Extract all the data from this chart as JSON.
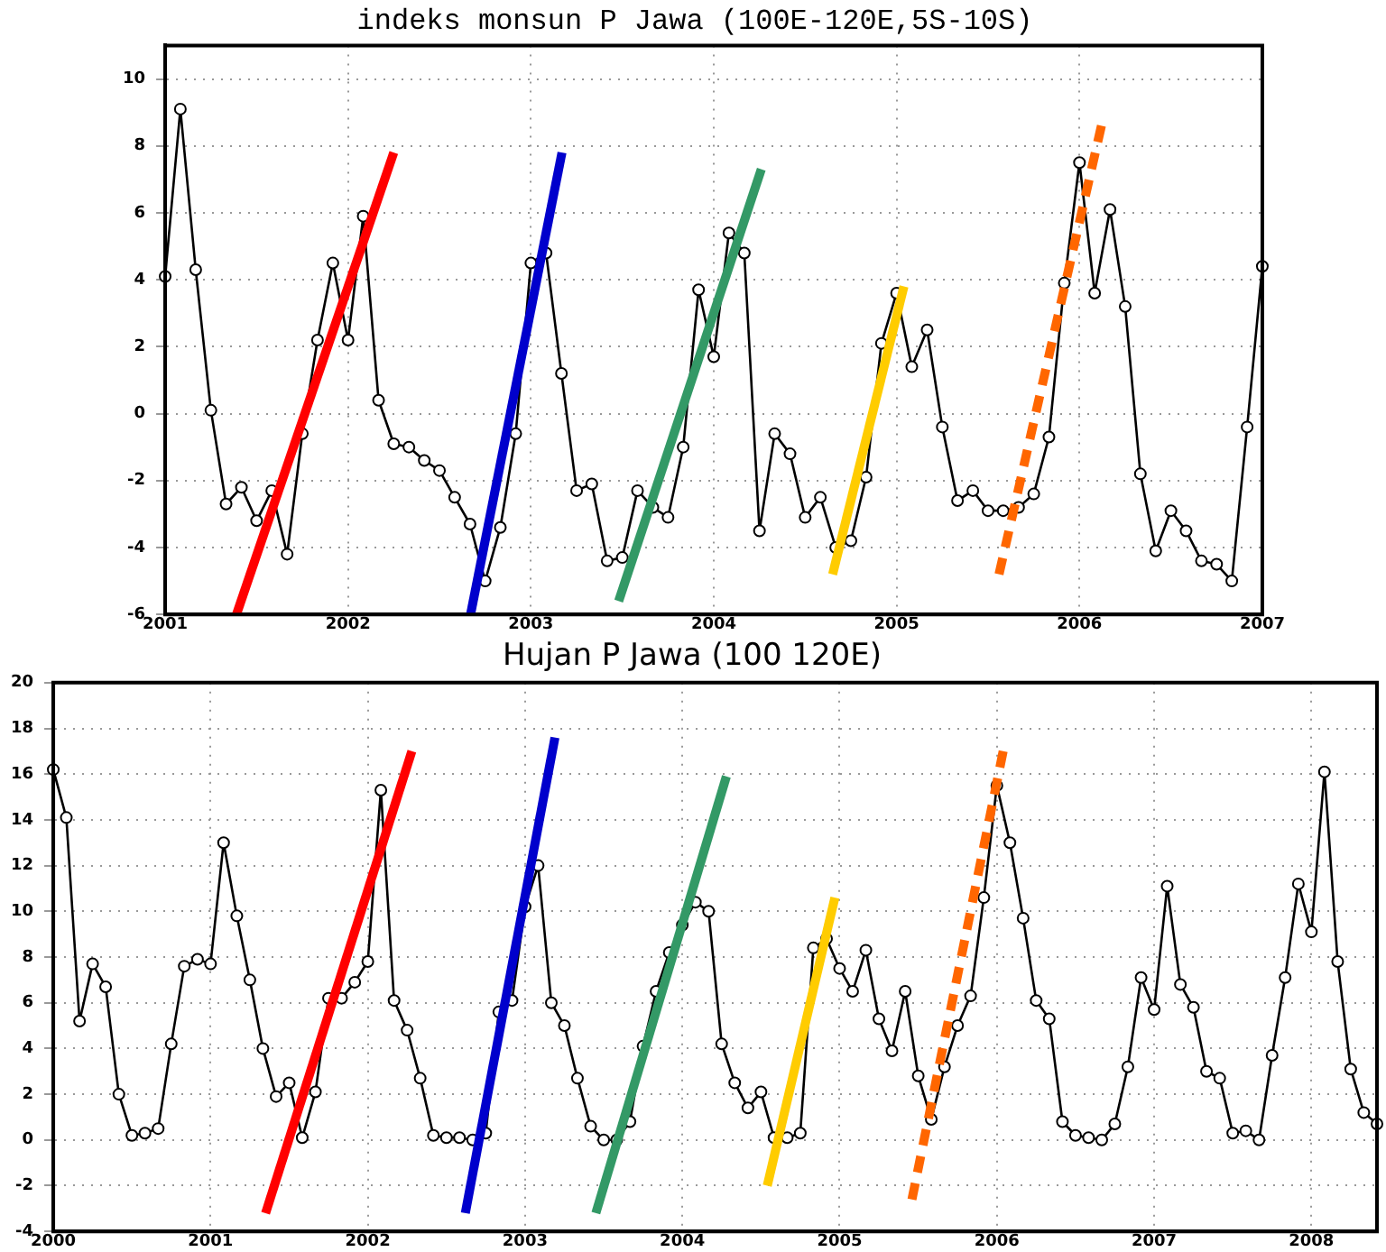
{
  "chart_data": [
    {
      "type": "line",
      "title": "indeks monsun P Jawa (100E-120E,5S-10S)",
      "xlim": [
        2001,
        2007
      ],
      "xticks": [
        2001,
        2002,
        2003,
        2004,
        2005,
        2006,
        2007
      ],
      "ylim": [
        -6,
        11
      ],
      "yticks": [
        -6,
        -4,
        -2,
        0,
        2,
        4,
        6,
        8,
        10
      ],
      "grid": true,
      "marker": "circle",
      "line_style": "solid",
      "series": [
        {
          "color": "#000000",
          "x": [
            2001,
            2001.083,
            2001.167,
            2001.25,
            2001.333,
            2001.417,
            2001.5,
            2001.583,
            2001.667,
            2001.75,
            2001.833,
            2001.917,
            2002,
            2002.083,
            2002.167,
            2002.25,
            2002.333,
            2002.417,
            2002.5,
            2002.583,
            2002.667,
            2002.75,
            2002.833,
            2002.917,
            2003,
            2003.083,
            2003.167,
            2003.25,
            2003.333,
            2003.417,
            2003.5,
            2003.583,
            2003.667,
            2003.75,
            2003.833,
            2003.917,
            2004,
            2004.083,
            2004.167,
            2004.25,
            2004.333,
            2004.417,
            2004.5,
            2004.583,
            2004.667,
            2004.75,
            2004.833,
            2004.917,
            2005,
            2005.083,
            2005.167,
            2005.25,
            2005.333,
            2005.417,
            2005.5,
            2005.583,
            2005.667,
            2005.75,
            2005.833,
            2005.917,
            2006,
            2006.083,
            2006.167,
            2006.25,
            2006.333,
            2006.417,
            2006.5,
            2006.583,
            2006.667,
            2006.75,
            2006.833,
            2006.917,
            2007
          ],
          "values": [
            4.1,
            9.1,
            4.3,
            0.1,
            -2.7,
            -2.2,
            -3.2,
            -2.3,
            -4.2,
            -0.6,
            2.2,
            4.5,
            2.2,
            5.9,
            0.4,
            -0.9,
            -1.0,
            -1.4,
            -1.7,
            -2.5,
            -3.3,
            -5.0,
            -3.4,
            -0.6,
            4.5,
            4.8,
            1.2,
            -2.3,
            -2.1,
            -4.4,
            -4.3,
            -2.3,
            -2.8,
            -3.1,
            -1.0,
            3.7,
            1.7,
            5.4,
            4.8,
            -3.5,
            -0.6,
            -1.2,
            -3.1,
            -2.5,
            -4.0,
            -3.8,
            -1.9,
            2.1,
            3.6,
            1.4,
            2.5,
            -0.4,
            -2.6,
            -2.3,
            -2.9,
            -2.9,
            -2.8,
            -2.4,
            -0.7,
            3.9,
            7.5,
            3.6,
            6.1,
            3.2,
            -1.8,
            -4.1,
            -2.9,
            -3.5,
            -4.4,
            -4.5,
            -5.0,
            -0.4,
            4.4
          ]
        },
        {
          "color": "#ff0000",
          "marker": "none",
          "x": [
            2001.39,
            2002.25
          ],
          "values": [
            -6,
            7.8
          ]
        },
        {
          "color": "#0000cc",
          "marker": "none",
          "x": [
            2002.67,
            2003.17
          ],
          "values": [
            -6,
            7.8
          ]
        },
        {
          "color": "#339966",
          "marker": "none",
          "x": [
            2003.48,
            2004.26
          ],
          "values": [
            -5.6,
            7.3
          ]
        },
        {
          "color": "#ffcc00",
          "marker": "none",
          "x": [
            2004.65,
            2005.04
          ],
          "values": [
            -4.8,
            3.8
          ]
        },
        {
          "color": "#ff6600",
          "marker": "none",
          "line_style": "dashed",
          "x": [
            2005.56,
            2006.12
          ],
          "values": [
            -4.8,
            8.6
          ]
        }
      ]
    },
    {
      "type": "line",
      "title": "Hujan P Jawa (100 120E)",
      "xlim": [
        2000,
        2008.417
      ],
      "xticks": [
        2000,
        2001,
        2002,
        2003,
        2004,
        2005,
        2006,
        2007,
        2008
      ],
      "ylim": [
        -4,
        20
      ],
      "yticks": [
        -4,
        -2,
        0,
        2,
        4,
        6,
        8,
        10,
        12,
        14,
        16,
        18,
        20
      ],
      "grid": true,
      "marker": "circle",
      "line_style": "solid",
      "series": [
        {
          "color": "#000000",
          "x": [
            2000,
            2000.083,
            2000.167,
            2000.25,
            2000.333,
            2000.417,
            2000.5,
            2000.583,
            2000.667,
            2000.75,
            2000.833,
            2000.917,
            2001,
            2001.083,
            2001.167,
            2001.25,
            2001.333,
            2001.417,
            2001.5,
            2001.583,
            2001.667,
            2001.75,
            2001.833,
            2001.917,
            2002,
            2002.083,
            2002.167,
            2002.25,
            2002.333,
            2002.417,
            2002.5,
            2002.583,
            2002.667,
            2002.75,
            2002.833,
            2002.917,
            2003,
            2003.083,
            2003.167,
            2003.25,
            2003.333,
            2003.417,
            2003.5,
            2003.583,
            2003.667,
            2003.75,
            2003.833,
            2003.917,
            2004,
            2004.083,
            2004.167,
            2004.25,
            2004.333,
            2004.417,
            2004.5,
            2004.583,
            2004.667,
            2004.75,
            2004.833,
            2004.917,
            2005,
            2005.083,
            2005.167,
            2005.25,
            2005.333,
            2005.417,
            2005.5,
            2005.583,
            2005.667,
            2005.75,
            2005.833,
            2005.917,
            2006,
            2006.083,
            2006.167,
            2006.25,
            2006.333,
            2006.417,
            2006.5,
            2006.583,
            2006.667,
            2006.75,
            2006.833,
            2006.917,
            2007,
            2007.083,
            2007.167,
            2007.25,
            2007.333,
            2007.417,
            2007.5,
            2007.583,
            2007.667,
            2007.75,
            2007.833,
            2007.917,
            2008,
            2008.083,
            2008.167,
            2008.25,
            2008.333,
            2008.417
          ],
          "values": [
            16.2,
            14.1,
            5.2,
            7.7,
            6.7,
            2.0,
            0.2,
            0.3,
            0.5,
            4.2,
            7.6,
            7.9,
            7.7,
            13.0,
            9.8,
            7.0,
            4.0,
            1.9,
            2.5,
            0.1,
            2.1,
            6.2,
            6.2,
            6.9,
            7.8,
            15.3,
            6.1,
            4.8,
            2.7,
            0.2,
            0.1,
            0.1,
            0.0,
            0.3,
            5.6,
            6.1,
            10.2,
            12.0,
            6.0,
            5.0,
            2.7,
            0.6,
            0.0,
            0.0,
            0.8,
            4.1,
            6.5,
            8.2,
            9.4,
            10.4,
            10.0,
            4.2,
            2.5,
            1.4,
            2.1,
            0.1,
            0.1,
            0.3,
            8.4,
            8.8,
            7.5,
            6.5,
            8.3,
            5.3,
            3.9,
            6.5,
            2.8,
            0.9,
            3.2,
            5.0,
            6.3,
            10.6,
            15.5,
            13.0,
            9.7,
            6.1,
            5.3,
            0.8,
            0.2,
            0.1,
            0.0,
            0.7,
            3.2,
            7.1,
            5.7,
            11.1,
            6.8,
            5.8,
            3.0,
            2.7,
            0.3,
            0.4,
            0.0,
            3.7,
            7.1,
            11.2,
            9.1,
            16.1,
            7.8,
            3.1,
            1.2,
            0.7
          ]
        },
        {
          "color": "#ff0000",
          "marker": "none",
          "x": [
            2001.35,
            2002.28
          ],
          "values": [
            -3.2,
            17.0
          ]
        },
        {
          "color": "#0000cc",
          "marker": "none",
          "x": [
            2002.62,
            2003.19
          ],
          "values": [
            -3.2,
            17.6
          ]
        },
        {
          "color": "#339966",
          "marker": "none",
          "x": [
            2003.45,
            2004.28
          ],
          "values": [
            -3.2,
            15.9
          ]
        },
        {
          "color": "#ffcc00",
          "marker": "none",
          "x": [
            2004.54,
            2004.97
          ],
          "values": [
            -2.0,
            10.6
          ]
        },
        {
          "color": "#ff6600",
          "marker": "none",
          "line_style": "dashed",
          "x": [
            2005.46,
            2006.04
          ],
          "values": [
            -2.6,
            17.0
          ]
        }
      ]
    }
  ]
}
